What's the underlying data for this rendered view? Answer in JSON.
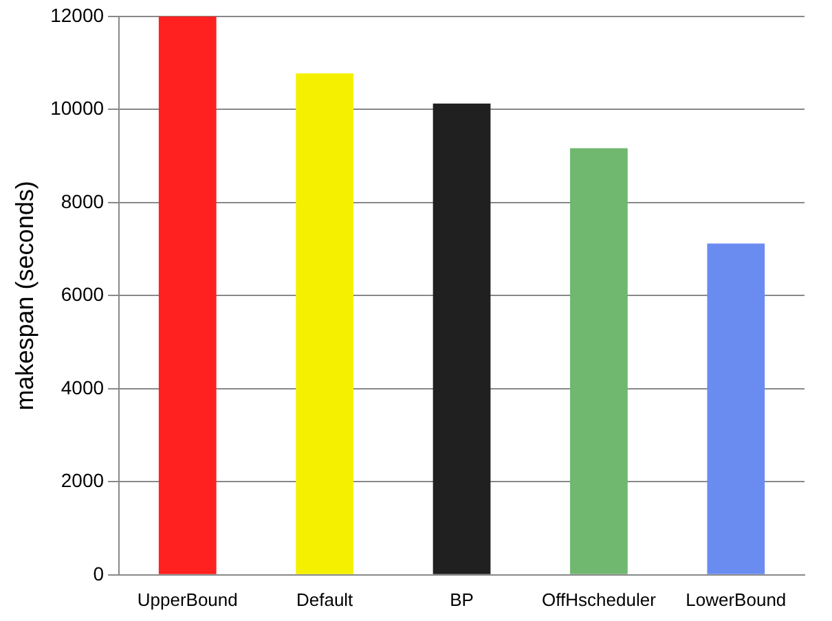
{
  "chart_data": {
    "type": "bar",
    "ylabel": "makespan (seconds)",
    "categories": [
      "UpperBound",
      "Default",
      "BP",
      "OffHscheduler",
      "LowerBound"
    ],
    "values": [
      12000,
      10780,
      10130,
      9170,
      7120
    ],
    "colors": [
      "#ff2020",
      "#f5f000",
      "#202020",
      "#70b870",
      "#6a8cf0"
    ],
    "ylim": [
      0,
      12000
    ],
    "yticks": [
      0,
      2000,
      4000,
      6000,
      8000,
      10000,
      12000
    ],
    "grid": "y"
  }
}
